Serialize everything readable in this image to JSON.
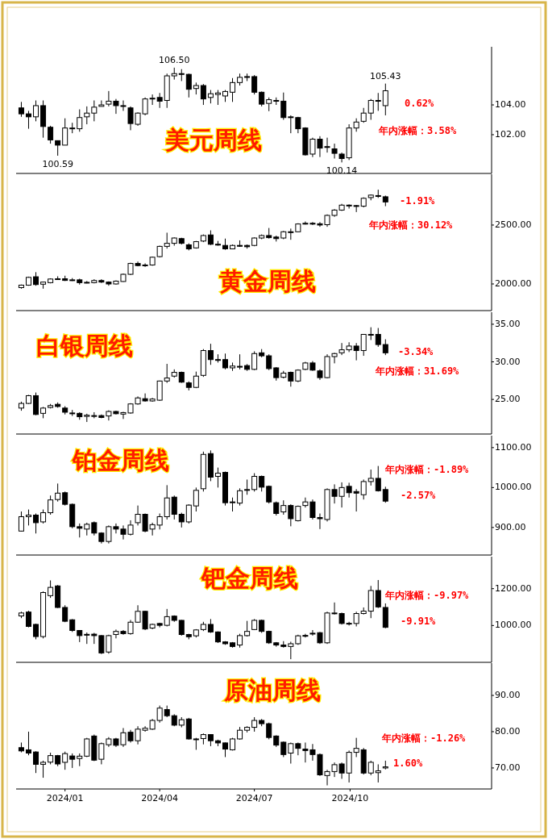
{
  "chart_data": [
    {
      "type": "candlestick",
      "title": "美元周线",
      "tick_labels": "y",
      "xlim": [
        "2023-11-15",
        "2025-02-14"
      ],
      "ylim": [
        99.4,
        107.9
      ],
      "yticks": [
        {
          "value": 102,
          "label": "102.00"
        },
        {
          "value": 104,
          "label": "104.00"
        }
      ],
      "x": [
        "2023-11-20",
        "2023-11-27",
        "2023-12-04",
        "2023-12-11",
        "2023-12-18",
        "2023-12-25",
        "2024-01-01",
        "2024-01-08",
        "2024-01-15",
        "2024-01-22",
        "2024-01-29",
        "2024-02-05",
        "2024-02-12",
        "2024-02-19",
        "2024-02-26",
        "2024-03-04",
        "2024-03-11",
        "2024-03-18",
        "2024-03-25",
        "2024-04-01",
        "2024-04-08",
        "2024-04-15",
        "2024-04-22",
        "2024-04-29",
        "2024-05-06",
        "2024-05-13",
        "2024-05-20",
        "2024-05-27",
        "2024-06-03",
        "2024-06-10",
        "2024-06-17",
        "2024-06-24",
        "2024-07-01",
        "2024-07-08",
        "2024-07-15",
        "2024-07-22",
        "2024-07-29",
        "2024-08-05",
        "2024-08-12",
        "2024-08-19",
        "2024-08-26",
        "2024-09-02",
        "2024-09-09",
        "2024-09-16",
        "2024-09-23",
        "2024-09-30",
        "2024-10-07",
        "2024-10-14",
        "2024-10-21",
        "2024-10-28",
        "2024-11-04"
      ],
      "ohlc": [
        [
          103.8,
          104.2,
          103.2,
          103.4
        ],
        [
          103.4,
          103.6,
          102.4,
          103.2
        ],
        [
          103.2,
          104.3,
          102.9,
          103.95
        ],
        [
          103.95,
          104.3,
          101.8,
          102.55
        ],
        [
          102.5,
          102.6,
          101.4,
          101.65
        ],
        [
          101.6,
          101.6,
          100.59,
          101.3
        ],
        [
          101.3,
          103.1,
          101.3,
          102.45
        ],
        [
          102.4,
          102.8,
          102.1,
          102.45
        ],
        [
          102.4,
          103.7,
          102.2,
          103.15
        ],
        [
          103.2,
          103.9,
          102.7,
          103.45
        ],
        [
          103.45,
          104.3,
          102.9,
          103.85
        ],
        [
          103.9,
          104.3,
          103.9,
          104.0
        ],
        [
          104.05,
          104.93,
          103.9,
          104.25
        ],
        [
          104.25,
          104.4,
          103.4,
          103.95
        ],
        [
          103.95,
          104.3,
          103.6,
          103.9
        ],
        [
          103.8,
          103.9,
          102.3,
          102.75
        ],
        [
          102.7,
          103.5,
          102.6,
          103.45
        ],
        [
          103.4,
          104.5,
          103.3,
          104.4
        ],
        [
          104.4,
          104.7,
          104.0,
          104.45
        ],
        [
          104.5,
          104.8,
          103.8,
          104.25
        ],
        [
          104.3,
          106.1,
          103.8,
          105.95
        ],
        [
          105.95,
          106.5,
          105.7,
          106.1
        ],
        [
          106.1,
          106.4,
          105.6,
          106.05
        ],
        [
          106.05,
          106.1,
          104.5,
          105.05
        ],
        [
          105.1,
          105.5,
          104.7,
          105.3
        ],
        [
          105.3,
          105.4,
          104.0,
          104.4
        ],
        [
          104.5,
          105.0,
          104.1,
          104.75
        ],
        [
          104.7,
          105.0,
          104.0,
          104.8
        ],
        [
          104.6,
          105.0,
          104.2,
          104.9
        ],
        [
          104.85,
          105.8,
          104.2,
          105.5
        ],
        [
          105.5,
          106.1,
          105.3,
          105.85
        ],
        [
          105.85,
          106.1,
          105.6,
          105.9
        ],
        [
          105.9,
          106.0,
          104.7,
          104.85
        ],
        [
          104.85,
          104.9,
          103.9,
          104.05
        ],
        [
          104.1,
          104.5,
          103.58,
          104.35
        ],
        [
          104.3,
          104.5,
          104.0,
          104.3
        ],
        [
          104.25,
          104.83,
          103.0,
          103.15
        ],
        [
          103.2,
          103.3,
          102.1,
          103.2
        ],
        [
          103.15,
          103.2,
          102.1,
          102.4
        ],
        [
          102.45,
          102.5,
          100.6,
          100.65
        ],
        [
          100.7,
          101.8,
          100.5,
          101.7
        ],
        [
          101.7,
          101.9,
          100.5,
          101.1
        ],
        [
          101.2,
          101.8,
          100.8,
          101.15
        ],
        [
          101.05,
          101.4,
          100.4,
          100.75
        ],
        [
          100.7,
          100.8,
          100.14,
          100.4
        ],
        [
          100.45,
          102.7,
          100.3,
          102.45
        ],
        [
          102.45,
          103.1,
          102.2,
          102.85
        ],
        [
          102.9,
          103.8,
          102.8,
          103.45
        ],
        [
          103.45,
          104.4,
          103.0,
          104.3
        ],
        [
          104.3,
          104.8,
          103.6,
          104.3
        ],
        [
          103.95,
          105.43,
          103.3,
          104.95
        ]
      ],
      "annotations": [
        "0.62%",
        "年内涨幅：3.58%",
        {
          "text": "106.50",
          "x": "2024-04-15",
          "y": 106.5
        },
        {
          "text": "100.59",
          "x": "2023-12-25",
          "y": 100.59
        },
        {
          "text": "100.14",
          "x": "2024-09-23",
          "y": 100.14
        },
        {
          "text": "105.43",
          "x": "2024-11-04",
          "y": 105.43
        }
      ]
    },
    {
      "type": "candlestick",
      "title": "黄金周线",
      "tick_labels": "y",
      "xlim": [
        "2023-11-15",
        "2025-02-14"
      ],
      "ylim": [
        1774,
        2931
      ],
      "yticks": [
        {
          "value": 2000,
          "label": "2000.00"
        },
        {
          "value": 2500,
          "label": "2500.00"
        }
      ],
      "x": [
        "2023-11-20",
        "2023-11-27",
        "2023-12-04",
        "2023-12-11",
        "2023-12-18",
        "2023-12-25",
        "2024-01-01",
        "2024-01-08",
        "2024-01-15",
        "2024-01-22",
        "2024-01-29",
        "2024-02-05",
        "2024-02-12",
        "2024-02-19",
        "2024-02-26",
        "2024-03-04",
        "2024-03-11",
        "2024-03-18",
        "2024-03-25",
        "2024-04-01",
        "2024-04-08",
        "2024-04-15",
        "2024-04-22",
        "2024-04-29",
        "2024-05-06",
        "2024-05-13",
        "2024-05-20",
        "2024-05-27",
        "2024-06-03",
        "2024-06-10",
        "2024-06-17",
        "2024-06-24",
        "2024-07-01",
        "2024-07-08",
        "2024-07-15",
        "2024-07-22",
        "2024-07-29",
        "2024-08-05",
        "2024-08-12",
        "2024-08-19",
        "2024-08-26",
        "2024-09-02",
        "2024-09-09",
        "2024-09-16",
        "2024-09-23",
        "2024-09-30",
        "2024-10-07",
        "2024-10-14",
        "2024-10-21",
        "2024-10-28",
        "2024-11-04"
      ],
      "ohlc": [
        [
          1969,
          1995,
          1960,
          1990
        ],
        [
          1990,
          2062,
          1985,
          2056
        ],
        [
          2061,
          2100,
          1985,
          1995
        ],
        [
          1998,
          2020,
          1960,
          2016
        ],
        [
          2011,
          2048,
          2005,
          2042
        ],
        [
          2042,
          2065,
          2035,
          2044
        ],
        [
          2044,
          2070,
          2025,
          2030
        ],
        [
          2030,
          2050,
          2025,
          2035
        ],
        [
          2035,
          2045,
          1995,
          2011
        ],
        [
          2011,
          2025,
          2005,
          2014
        ],
        [
          2011,
          2040,
          2005,
          2029
        ],
        [
          2029,
          2040,
          2008,
          2016
        ],
        [
          2016,
          2022,
          1985,
          2000
        ],
        [
          2000,
          2030,
          1995,
          2024
        ],
        [
          2021,
          2088,
          2018,
          2082
        ],
        [
          2082,
          2180,
          2075,
          2174
        ],
        [
          2174,
          2190,
          2150,
          2156
        ],
        [
          2156,
          2175,
          2145,
          2161
        ],
        [
          2161,
          2232,
          2155,
          2227
        ],
        [
          2232,
          2325,
          2225,
          2319
        ],
        [
          2319,
          2435,
          2300,
          2345
        ],
        [
          2345,
          2395,
          2325,
          2390
        ],
        [
          2385,
          2392,
          2335,
          2345
        ],
        [
          2332,
          2345,
          2285,
          2298
        ],
        [
          2306,
          2365,
          2300,
          2359
        ],
        [
          2364,
          2420,
          2355,
          2411
        ],
        [
          2416,
          2455,
          2330,
          2337
        ],
        [
          2337,
          2365,
          2325,
          2335
        ],
        [
          2327,
          2385,
          2290,
          2298
        ],
        [
          2298,
          2335,
          2295,
          2327
        ],
        [
          2327,
          2370,
          2315,
          2325
        ],
        [
          2327,
          2335,
          2300,
          2316
        ],
        [
          2327,
          2395,
          2320,
          2390
        ],
        [
          2390,
          2420,
          2380,
          2411
        ],
        [
          2411,
          2475,
          2385,
          2393
        ],
        [
          2398,
          2410,
          2360,
          2385
        ],
        [
          2390,
          2450,
          2380,
          2443
        ],
        [
          2443,
          2470,
          2375,
          2440
        ],
        [
          2443,
          2515,
          2440,
          2509
        ],
        [
          2511,
          2530,
          2505,
          2515
        ],
        [
          2515,
          2525,
          2500,
          2513
        ],
        [
          2511,
          2525,
          2485,
          2500
        ],
        [
          2503,
          2590,
          2485,
          2582
        ],
        [
          2582,
          2635,
          2570,
          2627
        ],
        [
          2627,
          2680,
          2620,
          2669
        ],
        [
          2669,
          2675,
          2640,
          2665
        ],
        [
          2665,
          2670,
          2610,
          2660
        ],
        [
          2660,
          2735,
          2650,
          2727
        ],
        [
          2733,
          2760,
          2710,
          2754
        ],
        [
          2750,
          2800,
          2730,
          2748
        ],
        [
          2740,
          2750,
          2660,
          2696
        ]
      ],
      "annotations": [
        "-1.91%",
        "年内涨幅：30.12%"
      ]
    },
    {
      "type": "candlestick",
      "title": "白银周线",
      "tick_labels": "y",
      "xlim": [
        "2023-11-15",
        "2025-02-14"
      ],
      "ylim": [
        20.4,
        36.6
      ],
      "yticks": [
        {
          "value": 25,
          "label": "25.00"
        },
        {
          "value": 30,
          "label": "30.00"
        },
        {
          "value": 35,
          "label": "35.00"
        }
      ],
      "x": [
        "2023-11-20",
        "2023-11-27",
        "2023-12-04",
        "2023-12-11",
        "2023-12-18",
        "2023-12-25",
        "2024-01-01",
        "2024-01-08",
        "2024-01-15",
        "2024-01-22",
        "2024-01-29",
        "2024-02-05",
        "2024-02-12",
        "2024-02-19",
        "2024-02-26",
        "2024-03-04",
        "2024-03-11",
        "2024-03-18",
        "2024-03-25",
        "2024-04-01",
        "2024-04-08",
        "2024-04-15",
        "2024-04-22",
        "2024-04-29",
        "2024-05-06",
        "2024-05-13",
        "2024-05-20",
        "2024-05-27",
        "2024-06-03",
        "2024-06-10",
        "2024-06-17",
        "2024-06-24",
        "2024-07-01",
        "2024-07-08",
        "2024-07-15",
        "2024-07-22",
        "2024-07-29",
        "2024-08-05",
        "2024-08-12",
        "2024-08-19",
        "2024-08-26",
        "2024-09-02",
        "2024-09-09",
        "2024-09-16",
        "2024-09-23",
        "2024-09-30",
        "2024-10-07",
        "2024-10-14",
        "2024-10-21",
        "2024-10-28",
        "2024-11-04"
      ],
      "ohlc": [
        [
          23.85,
          24.7,
          23.5,
          24.47
        ],
        [
          24.47,
          25.6,
          24.4,
          25.5
        ],
        [
          25.5,
          25.92,
          22.9,
          23.0
        ],
        [
          23.15,
          24.0,
          22.5,
          23.85
        ],
        [
          23.93,
          24.4,
          23.8,
          24.18
        ],
        [
          24.35,
          24.6,
          23.9,
          24.06
        ],
        [
          23.85,
          24.1,
          23.0,
          23.3
        ],
        [
          23.2,
          23.6,
          22.8,
          23.2
        ],
        [
          23.15,
          23.3,
          22.3,
          22.7
        ],
        [
          22.75,
          23.1,
          22.0,
          22.9
        ],
        [
          22.85,
          23.3,
          22.5,
          22.85
        ],
        [
          22.85,
          23.0,
          22.5,
          22.6
        ],
        [
          22.8,
          23.55,
          22.2,
          23.4
        ],
        [
          23.4,
          23.5,
          23.0,
          23.1
        ],
        [
          23.05,
          23.35,
          22.4,
          23.25
        ],
        [
          23.2,
          24.5,
          23.1,
          24.4
        ],
        [
          24.4,
          25.4,
          24.3,
          25.2
        ],
        [
          25.1,
          25.8,
          24.7,
          24.8
        ],
        [
          24.8,
          25.2,
          24.7,
          25.05
        ],
        [
          24.9,
          27.5,
          24.8,
          27.45
        ],
        [
          27.45,
          29.73,
          27.2,
          27.85
        ],
        [
          28.1,
          29.0,
          27.9,
          28.6
        ],
        [
          28.6,
          28.7,
          27.2,
          27.3
        ],
        [
          27.2,
          27.4,
          26.2,
          26.6
        ],
        [
          26.6,
          28.7,
          26.5,
          28.1
        ],
        [
          28.2,
          31.7,
          28.0,
          31.5
        ],
        [
          31.5,
          32.4,
          29.6,
          30.3
        ],
        [
          30.3,
          31.0,
          29.9,
          30.25
        ],
        [
          30.3,
          31.1,
          29.0,
          29.2
        ],
        [
          29.2,
          29.9,
          28.8,
          29.44
        ],
        [
          29.4,
          31.0,
          29.0,
          29.4
        ],
        [
          29.5,
          29.7,
          28.8,
          29.0
        ],
        [
          29.0,
          31.4,
          28.9,
          31.1
        ],
        [
          31.2,
          31.7,
          30.6,
          30.8
        ],
        [
          30.8,
          31.0,
          28.9,
          29.1
        ],
        [
          29.2,
          29.3,
          27.5,
          27.9
        ],
        [
          27.95,
          28.8,
          27.8,
          28.5
        ],
        [
          28.6,
          28.7,
          26.7,
          27.45
        ],
        [
          27.45,
          29.0,
          27.3,
          28.9
        ],
        [
          29.0,
          30.0,
          28.9,
          29.85
        ],
        [
          29.85,
          30.1,
          28.8,
          28.9
        ],
        [
          28.8,
          29.0,
          27.6,
          27.9
        ],
        [
          27.9,
          31.0,
          27.8,
          30.7
        ],
        [
          30.7,
          31.2,
          29.8,
          31.1
        ],
        [
          31.2,
          32.5,
          30.9,
          31.6
        ],
        [
          31.6,
          32.6,
          31.3,
          32.1
        ],
        [
          32.1,
          32.5,
          30.2,
          31.5
        ],
        [
          31.5,
          33.7,
          30.8,
          33.65
        ],
        [
          33.65,
          34.6,
          32.9,
          33.6
        ],
        [
          33.65,
          34.5,
          32.0,
          32.3
        ],
        [
          32.3,
          33.0,
          30.9,
          31.2
        ]
      ],
      "annotations": [
        "-3.34%",
        "年内涨幅：31.69%"
      ]
    },
    {
      "type": "candlestick",
      "title": "铂金周线",
      "tick_labels": "y",
      "xlim": [
        "2023-11-15",
        "2025-02-14"
      ],
      "ylim": [
        831,
        1130
      ],
      "yticks": [
        {
          "value": 900,
          "label": "900.00"
        },
        {
          "value": 1000,
          "label": "1000.00"
        },
        {
          "value": 1100,
          "label": "1100.00"
        }
      ],
      "x": [
        "2023-11-20",
        "2023-11-27",
        "2023-12-04",
        "2023-12-11",
        "2023-12-18",
        "2023-12-25",
        "2024-01-01",
        "2024-01-08",
        "2024-01-15",
        "2024-01-22",
        "2024-01-29",
        "2024-02-05",
        "2024-02-12",
        "2024-02-19",
        "2024-02-26",
        "2024-03-04",
        "2024-03-11",
        "2024-03-18",
        "2024-03-25",
        "2024-04-01",
        "2024-04-08",
        "2024-04-15",
        "2024-04-22",
        "2024-04-29",
        "2024-05-06",
        "2024-05-13",
        "2024-05-20",
        "2024-05-27",
        "2024-06-03",
        "2024-06-10",
        "2024-06-17",
        "2024-06-24",
        "2024-07-01",
        "2024-07-08",
        "2024-07-15",
        "2024-07-22",
        "2024-07-29",
        "2024-08-05",
        "2024-08-12",
        "2024-08-19",
        "2024-08-26",
        "2024-09-02",
        "2024-09-09",
        "2024-09-16",
        "2024-09-23",
        "2024-09-30",
        "2024-10-07",
        "2024-10-14",
        "2024-10-21",
        "2024-10-28",
        "2024-11-04"
      ],
      "ohlc": [
        [
          891,
          940,
          890,
          927
        ],
        [
          927,
          945,
          905,
          931
        ],
        [
          931,
          935,
          885,
          912
        ],
        [
          914,
          945,
          910,
          937
        ],
        [
          937,
          980,
          932,
          969
        ],
        [
          970,
          1010,
          965,
          986
        ],
        [
          987,
          990,
          955,
          958
        ],
        [
          958,
          960,
          898,
          902
        ],
        [
          902,
          910,
          875,
          898
        ],
        [
          896,
          912,
          880,
          908
        ],
        [
          912,
          915,
          880,
          886
        ],
        [
          886,
          888,
          860,
          865
        ],
        [
          865,
          905,
          860,
          902
        ],
        [
          902,
          910,
          885,
          896
        ],
        [
          896,
          905,
          870,
          883
        ],
        [
          883,
          918,
          880,
          906
        ],
        [
          912,
          955,
          905,
          933
        ],
        [
          933,
          935,
          888,
          891
        ],
        [
          896,
          912,
          880,
          907
        ],
        [
          906,
          935,
          895,
          927
        ],
        [
          927,
          1006,
          920,
          974
        ],
        [
          976,
          980,
          920,
          933
        ],
        [
          933,
          937,
          900,
          914
        ],
        [
          914,
          958,
          910,
          956
        ],
        [
          954,
          1000,
          940,
          993
        ],
        [
          997,
          1090,
          990,
          1083
        ],
        [
          1085,
          1093,
          1016,
          1026
        ],
        [
          1028,
          1050,
          1000,
          1036
        ],
        [
          1038,
          1040,
          955,
          962
        ],
        [
          962,
          975,
          940,
          964
        ],
        [
          961,
          998,
          955,
          992
        ],
        [
          995,
          1020,
          982,
          995
        ],
        [
          995,
          1036,
          990,
          1028
        ],
        [
          1028,
          1030,
          990,
          1001
        ],
        [
          1003,
          1005,
          960,
          964
        ],
        [
          962,
          965,
          930,
          935
        ],
        [
          939,
          968,
          932,
          955
        ],
        [
          955,
          958,
          903,
          922
        ],
        [
          917,
          955,
          915,
          953
        ],
        [
          955,
          975,
          950,
          964
        ],
        [
          964,
          970,
          920,
          925
        ],
        [
          925,
          935,
          896,
          922
        ],
        [
          920,
          998,
          915,
          995
        ],
        [
          995,
          1008,
          960,
          978
        ],
        [
          978,
          1013,
          950,
          1000
        ],
        [
          1003,
          1012,
          975,
          987
        ],
        [
          990,
          996,
          940,
          986
        ],
        [
          982,
          1020,
          970,
          1015
        ],
        [
          1015,
          1045,
          1005,
          1023
        ],
        [
          1023,
          1054,
          990,
          992
        ],
        [
          995,
          1002,
          962,
          966
        ]
      ],
      "annotations": [
        "年内涨幅：-1.89%",
        "-2.57%"
      ]
    },
    {
      "type": "candlestick",
      "title": "钯金周线",
      "tick_labels": "y",
      "xlim": [
        "2023-11-15",
        "2025-02-14"
      ],
      "ylim": [
        800,
        1374
      ],
      "yticks": [
        {
          "value": 1000,
          "label": "1000.00"
        },
        {
          "value": 1200,
          "label": "1200.00"
        }
      ],
      "x": [
        "2023-11-20",
        "2023-11-27",
        "2023-12-04",
        "2023-12-11",
        "2023-12-18",
        "2023-12-25",
        "2024-01-01",
        "2024-01-08",
        "2024-01-15",
        "2024-01-22",
        "2024-01-29",
        "2024-02-05",
        "2024-02-12",
        "2024-02-19",
        "2024-02-26",
        "2024-03-04",
        "2024-03-11",
        "2024-03-18",
        "2024-03-25",
        "2024-04-01",
        "2024-04-08",
        "2024-04-15",
        "2024-04-22",
        "2024-04-29",
        "2024-05-06",
        "2024-05-13",
        "2024-05-20",
        "2024-05-27",
        "2024-06-03",
        "2024-06-10",
        "2024-06-17",
        "2024-06-24",
        "2024-07-01",
        "2024-07-08",
        "2024-07-15",
        "2024-07-22",
        "2024-07-29",
        "2024-08-05",
        "2024-08-12",
        "2024-08-19",
        "2024-08-26",
        "2024-09-02",
        "2024-09-09",
        "2024-09-16",
        "2024-09-23",
        "2024-09-30",
        "2024-10-07",
        "2024-10-14",
        "2024-10-21",
        "2024-10-28",
        "2024-11-04"
      ],
      "ohlc": [
        [
          1052,
          1075,
          1040,
          1068
        ],
        [
          1073,
          1080,
          990,
          995
        ],
        [
          1006,
          1010,
          925,
          940
        ],
        [
          940,
          1185,
          930,
          1179
        ],
        [
          1162,
          1245,
          1150,
          1207
        ],
        [
          1215,
          1220,
          1095,
          1098
        ],
        [
          1098,
          1110,
          1018,
          1023
        ],
        [
          1031,
          1035,
          965,
          973
        ],
        [
          973,
          975,
          910,
          945
        ],
        [
          952,
          962,
          900,
          951
        ],
        [
          953,
          960,
          900,
          945
        ],
        [
          945,
          948,
          845,
          851
        ],
        [
          856,
          950,
          847,
          945
        ],
        [
          951,
          978,
          930,
          968
        ],
        [
          968,
          975,
          950,
          956
        ],
        [
          956,
          1030,
          950,
          1018
        ],
        [
          1018,
          1110,
          1015,
          1077
        ],
        [
          1077,
          1080,
          975,
          981
        ],
        [
          986,
          1010,
          980,
          1006
        ],
        [
          1011,
          1015,
          990,
          1001
        ],
        [
          1001,
          1090,
          995,
          1048
        ],
        [
          1051,
          1055,
          1020,
          1028
        ],
        [
          1028,
          1030,
          945,
          951
        ],
        [
          951,
          955,
          925,
          939
        ],
        [
          944,
          980,
          935,
          976
        ],
        [
          978,
          1020,
          970,
          1006
        ],
        [
          1006,
          1035,
          960,
          965
        ],
        [
          965,
          968,
          905,
          911
        ],
        [
          911,
          915,
          895,
          901
        ],
        [
          906,
          910,
          880,
          886
        ],
        [
          894,
          955,
          880,
          945
        ],
        [
          945,
          1025,
          940,
          968
        ],
        [
          978,
          1035,
          975,
          1028
        ],
        [
          1028,
          1032,
          960,
          968
        ],
        [
          968,
          972,
          900,
          906
        ],
        [
          906,
          910,
          885,
          894
        ],
        [
          894,
          915,
          880,
          886
        ],
        [
          886,
          912,
          817,
          901
        ],
        [
          901,
          950,
          895,
          944
        ],
        [
          946,
          955,
          935,
          944
        ],
        [
          955,
          975,
          945,
          958
        ],
        [
          961,
          965,
          900,
          906
        ],
        [
          906,
          1075,
          900,
          1068
        ],
        [
          1068,
          1125,
          1060,
          1068
        ],
        [
          1065,
          1070,
          1005,
          1011
        ],
        [
          1011,
          1020,
          1000,
          1012
        ],
        [
          1011,
          1075,
          995,
          1065
        ],
        [
          1065,
          1098,
          1060,
          1078
        ],
        [
          1078,
          1215,
          1040,
          1190
        ],
        [
          1190,
          1247,
          1095,
          1101
        ],
        [
          1098,
          1120,
          985,
          990
        ]
      ],
      "annotations": [
        "年内涨幅：-9.97%",
        "-9.91%"
      ]
    },
    {
      "type": "candlestick",
      "title": "原油周线",
      "xlim": [
        "2023-11-15",
        "2025-02-14"
      ],
      "ylim": [
        64.2,
        98.9
      ],
      "yticks": [
        {
          "value": 70,
          "label": "70.00"
        },
        {
          "value": 80,
          "label": "80.00"
        },
        {
          "value": 90,
          "label": "90.00"
        }
      ],
      "xticks": [
        {
          "value": "2024-01-01",
          "label": "2024/01"
        },
        {
          "value": "2024-04-01",
          "label": "2024/04"
        },
        {
          "value": "2024-07-01",
          "label": "2024/07"
        },
        {
          "value": "2024-10-01",
          "label": "2024/10"
        }
      ],
      "x": [
        "2023-11-20",
        "2023-11-27",
        "2023-12-04",
        "2023-12-11",
        "2023-12-18",
        "2023-12-25",
        "2024-01-01",
        "2024-01-08",
        "2024-01-15",
        "2024-01-22",
        "2024-01-29",
        "2024-02-05",
        "2024-02-12",
        "2024-02-19",
        "2024-02-26",
        "2024-03-04",
        "2024-03-11",
        "2024-03-18",
        "2024-03-25",
        "2024-04-01",
        "2024-04-08",
        "2024-04-15",
        "2024-04-22",
        "2024-04-29",
        "2024-05-06",
        "2024-05-13",
        "2024-05-20",
        "2024-05-27",
        "2024-06-03",
        "2024-06-10",
        "2024-06-17",
        "2024-06-24",
        "2024-07-01",
        "2024-07-08",
        "2024-07-15",
        "2024-07-22",
        "2024-07-29",
        "2024-08-05",
        "2024-08-12",
        "2024-08-19",
        "2024-08-26",
        "2024-09-02",
        "2024-09-09",
        "2024-09-16",
        "2024-09-23",
        "2024-09-30",
        "2024-10-07",
        "2024-10-14",
        "2024-10-21",
        "2024-10-28",
        "2024-11-04"
      ],
      "ohlc": [
        [
          75.6,
          77.0,
          74.3,
          74.7
        ],
        [
          75.0,
          80.0,
          73.5,
          74.1
        ],
        [
          74.4,
          74.6,
          68.6,
          71.0
        ],
        [
          71.0,
          72.0,
          67.3,
          71.55
        ],
        [
          71.6,
          74.2,
          71.0,
          73.4
        ],
        [
          73.4,
          73.6,
          70.5,
          71.1
        ],
        [
          71.55,
          74.5,
          69.5,
          73.95
        ],
        [
          73.3,
          74.0,
          70.0,
          72.4
        ],
        [
          72.6,
          74.0,
          70.5,
          73.25
        ],
        [
          73.25,
          78.3,
          73.0,
          78.0
        ],
        [
          78.8,
          79.2,
          71.9,
          72.15
        ],
        [
          72.4,
          77.0,
          71.0,
          76.7
        ],
        [
          76.4,
          78.5,
          75.8,
          78.0
        ],
        [
          78.0,
          78.3,
          75.8,
          76.25
        ],
        [
          76.4,
          81.0,
          75.8,
          79.7
        ],
        [
          79.85,
          80.5,
          77.0,
          77.5
        ],
        [
          77.5,
          81.5,
          76.5,
          80.7
        ],
        [
          80.4,
          81.5,
          80.0,
          80.95
        ],
        [
          80.7,
          83.5,
          80.5,
          83.1
        ],
        [
          83.1,
          87.2,
          82.5,
          86.5
        ],
        [
          86.1,
          87.2,
          84.0,
          84.4
        ],
        [
          84.4,
          84.8,
          81.5,
          81.8
        ],
        [
          81.8,
          84.0,
          81.2,
          83.3
        ],
        [
          83.5,
          83.8,
          77.8,
          78.0
        ],
        [
          78.0,
          78.3,
          75.0,
          78.0
        ],
        [
          78.1,
          79.5,
          76.5,
          79.2
        ],
        [
          79.2,
          79.3,
          76.0,
          77.5
        ],
        [
          77.5,
          77.8,
          76.0,
          76.9
        ],
        [
          76.9,
          77.0,
          73.0,
          75.2
        ],
        [
          75.0,
          78.3,
          74.8,
          78.0
        ],
        [
          78.0,
          81.3,
          77.8,
          80.4
        ],
        [
          80.4,
          81.5,
          79.8,
          81.2
        ],
        [
          81.2,
          84.0,
          80.0,
          83.1
        ],
        [
          83.1,
          83.5,
          81.5,
          82.2
        ],
        [
          82.2,
          82.5,
          77.9,
          78.4
        ],
        [
          78.8,
          79.0,
          75.8,
          76.3
        ],
        [
          77.1,
          77.3,
          73.0,
          73.7
        ],
        [
          74.1,
          77.0,
          71.2,
          76.7
        ],
        [
          76.7,
          77.0,
          73.5,
          75.4
        ],
        [
          75.2,
          77.0,
          71.5,
          74.8
        ],
        [
          75.0,
          76.6,
          72.0,
          73.7
        ],
        [
          73.7,
          74.0,
          67.8,
          68.1
        ],
        [
          67.9,
          69.5,
          65.2,
          69.0
        ],
        [
          69.0,
          71.5,
          67.5,
          70.9
        ],
        [
          71.1,
          71.5,
          67.0,
          68.6
        ],
        [
          68.6,
          74.8,
          66.0,
          74.3
        ],
        [
          74.3,
          78.3,
          73.0,
          75.4
        ],
        [
          75.0,
          75.5,
          68.2,
          68.6
        ],
        [
          68.6,
          72.0,
          68.0,
          71.55
        ],
        [
          68.7,
          71.0,
          66.0,
          69.2
        ],
        [
          70.0,
          72.0,
          69.6,
          70.3
        ]
      ],
      "annotations": [
        "年内涨幅：-1.26%",
        "1.60%"
      ]
    }
  ]
}
